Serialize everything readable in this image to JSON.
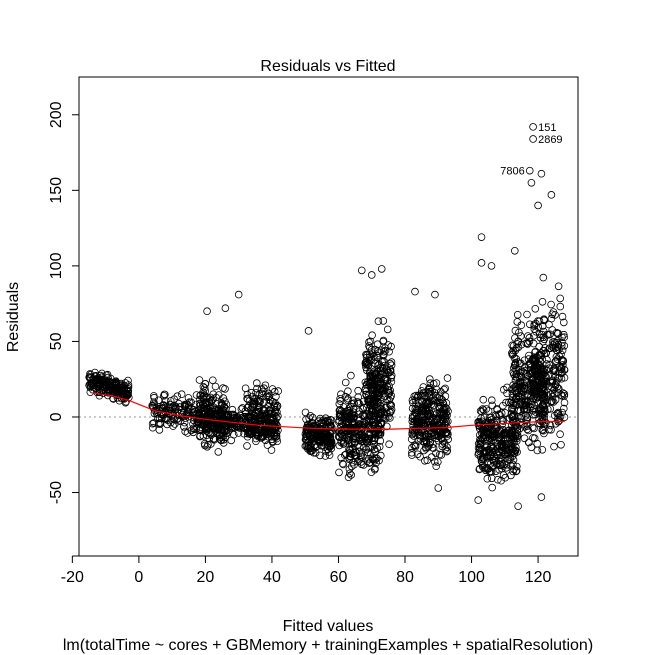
{
  "chart_data": {
    "type": "scatter",
    "title": "Residuals vs Fitted",
    "xlabel": "Fitted values",
    "ylabel": "Residuals",
    "subtitle": "lm(totalTime ~ cores + GBMemory + trainingExamples + spatialResolution)",
    "xlim": [
      -18,
      132
    ],
    "ylim": [
      -92,
      225
    ],
    "xticks": [
      -20,
      0,
      20,
      40,
      60,
      80,
      100,
      120
    ],
    "yticks": [
      -50,
      0,
      50,
      100,
      150,
      200
    ],
    "zero_line": 0,
    "clusters": [
      {
        "x": [
          -15,
          -3
        ],
        "y_center": 20,
        "y_spread": 6,
        "slope": -0.6,
        "n": 180
      },
      {
        "x": [
          4,
          42
        ],
        "y_center": -2,
        "y_spread": 10,
        "slope": -0.35,
        "n": 420
      },
      {
        "x": [
          18,
          26
        ],
        "y_center": 0,
        "y_spread": 18,
        "slope": 0,
        "n": 160
      },
      {
        "x": [
          32,
          42
        ],
        "y_center": 5,
        "y_spread": 14,
        "slope": 0,
        "n": 140
      },
      {
        "x": [
          50,
          58
        ],
        "y_center": -12,
        "y_spread": 12,
        "slope": 0,
        "n": 200
      },
      {
        "x": [
          60,
          73
        ],
        "y_center": -8,
        "y_spread": 22,
        "slope": 0,
        "n": 320
      },
      {
        "x": [
          68,
          76
        ],
        "y_center": 20,
        "y_spread": 28,
        "slope": 0,
        "n": 240
      },
      {
        "x": [
          82,
          93
        ],
        "y_center": -2,
        "y_spread": 22,
        "slope": 0,
        "n": 300
      },
      {
        "x": [
          102,
          114
        ],
        "y_center": -15,
        "y_spread": 22,
        "slope": 0,
        "n": 320
      },
      {
        "x": [
          112,
          122
        ],
        "y_center": 20,
        "y_spread": 35,
        "slope": 0,
        "n": 280
      },
      {
        "x": [
          118,
          128
        ],
        "y_center": 30,
        "y_spread": 38,
        "slope": 0,
        "n": 240
      }
    ],
    "notable_points": [
      {
        "label": "151",
        "x": 118.5,
        "y": 192
      },
      {
        "label": "2869",
        "x": 118.5,
        "y": 184
      },
      {
        "label": "7806",
        "x": 117.5,
        "y": 163
      },
      {
        "x": 30,
        "y": 81
      },
      {
        "x": 20.5,
        "y": 70
      },
      {
        "x": 26,
        "y": 72
      },
      {
        "x": 51,
        "y": 57
      },
      {
        "x": 67,
        "y": 97
      },
      {
        "x": 70,
        "y": 94
      },
      {
        "x": 73,
        "y": 98
      },
      {
        "x": 83,
        "y": 83
      },
      {
        "x": 89,
        "y": 81
      },
      {
        "x": 103,
        "y": 119
      },
      {
        "x": 103,
        "y": 102
      },
      {
        "x": 106,
        "y": 100
      },
      {
        "x": 113,
        "y": 110
      },
      {
        "x": 121,
        "y": 161
      },
      {
        "x": 124,
        "y": 147
      },
      {
        "x": 120,
        "y": 140
      },
      {
        "x": 118,
        "y": 155
      },
      {
        "x": 90,
        "y": -47
      },
      {
        "x": 114,
        "y": -59
      },
      {
        "x": 102,
        "y": -55
      },
      {
        "x": 121,
        "y": -53
      }
    ],
    "smoother": {
      "color": "#ff0000",
      "x": [
        -14,
        -8,
        -3,
        5,
        12,
        20,
        28,
        36,
        44,
        52,
        60,
        68,
        76,
        84,
        92,
        100,
        108,
        116,
        122,
        128
      ],
      "y": [
        16,
        14,
        11,
        4,
        1,
        -1.5,
        -3.5,
        -5.5,
        -6.5,
        -7.5,
        -8,
        -8,
        -8,
        -7.5,
        -7,
        -5.5,
        -4.5,
        -3.5,
        -3,
        -3
      ]
    }
  }
}
